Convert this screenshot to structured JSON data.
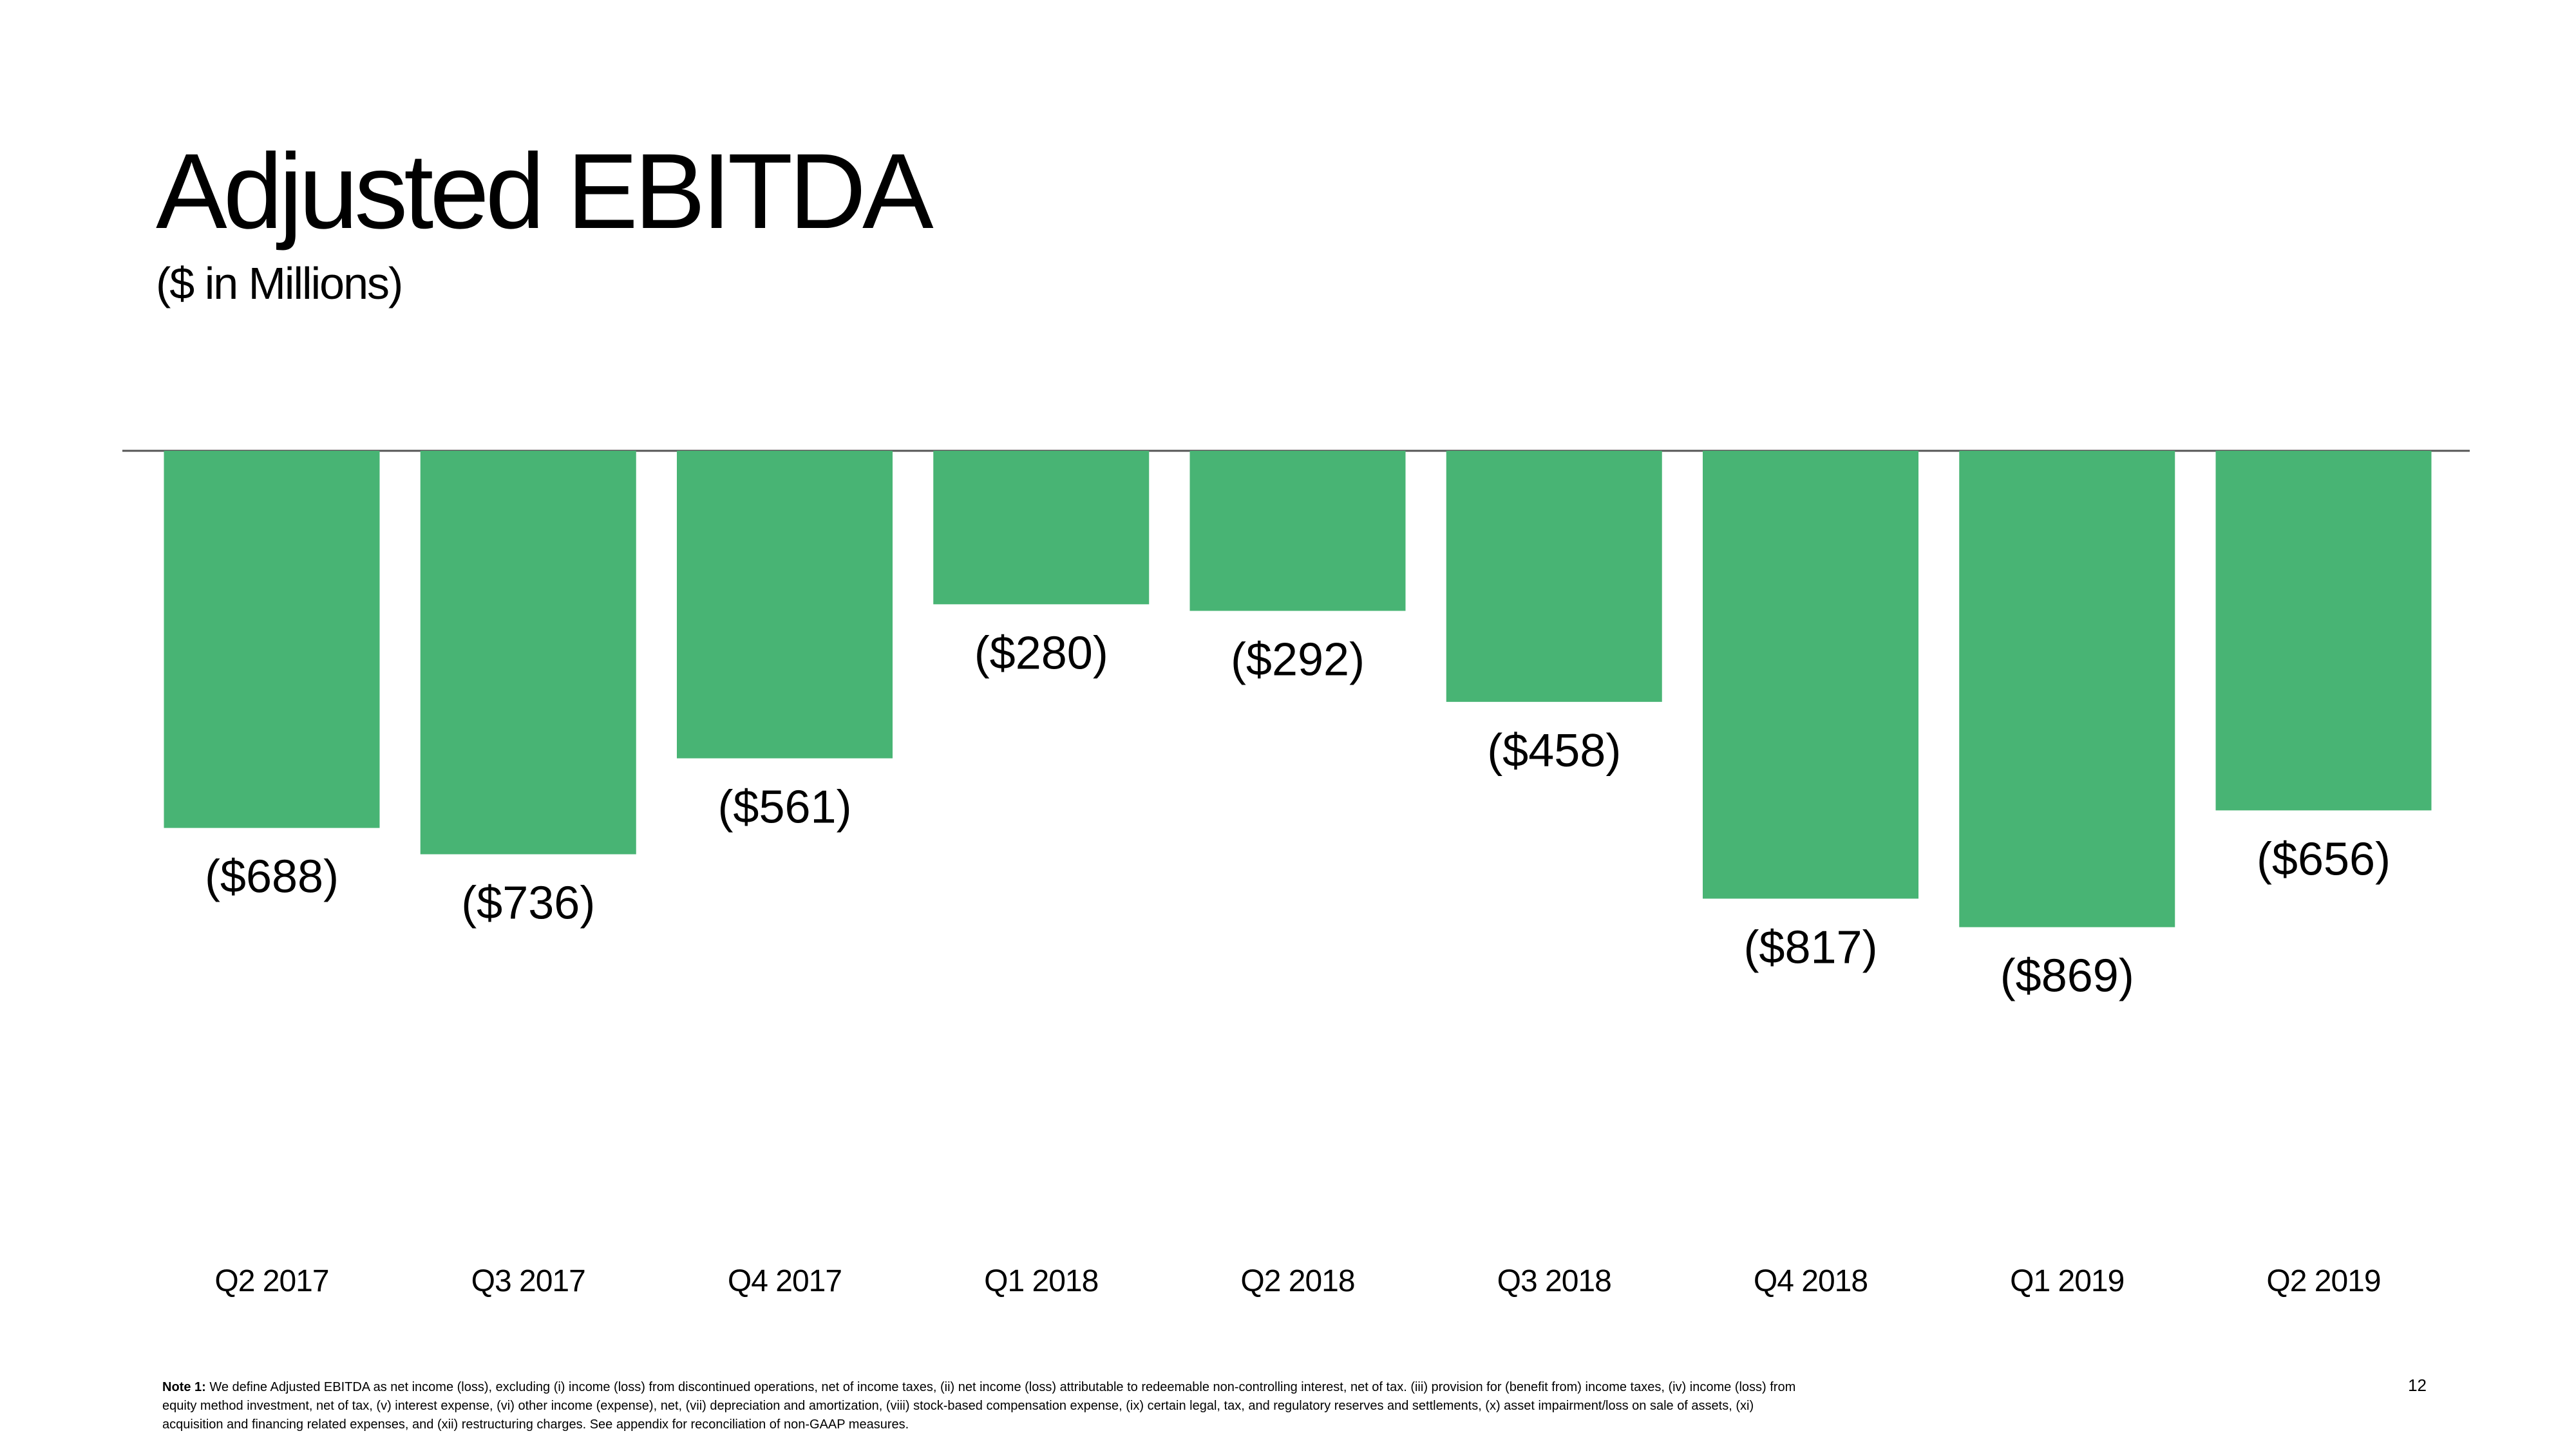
{
  "slide": {
    "title": "Adjusted EBITDA",
    "subtitle": "($ in Millions)",
    "note_label": "Note 1:",
    "note_text": "We define Adjusted EBITDA as net income (loss), excluding (i) income (loss) from discontinued operations, net of income taxes, (ii) net income (loss) attributable to redeemable non-controlling interest, net of tax. (iii) provision for (benefit from) income taxes, (iv) income (loss) from equity method investment, net of tax, (v) interest expense, (vi) other income (expense), net, (vii) depreciation and amortization, (viii) stock-based compensation expense, (ix) certain legal, tax, and regulatory reserves and settlements, (x) asset impairment/loss on sale of assets, (xi) acquisition and financing related expenses, and (xii) restructuring charges. See appendix for reconciliation of non-GAAP measures.",
    "page_number": "12"
  },
  "colors": {
    "bar": "#48B474",
    "baseline": "#555555",
    "text": "#000000",
    "background": "#FFFFFF"
  },
  "chart_data": {
    "type": "bar",
    "title": "Adjusted EBITDA",
    "subtitle": "($ in Millions)",
    "categories": [
      "Q2 2017",
      "Q3 2017",
      "Q4 2017",
      "Q1 2018",
      "Q2 2018",
      "Q3 2018",
      "Q4 2018",
      "Q1 2019",
      "Q2 2019"
    ],
    "values": [
      -688,
      -736,
      -561,
      -280,
      -292,
      -458,
      -817,
      -869,
      -656
    ],
    "data_labels": [
      "($688)",
      "($736)",
      "($561)",
      "($280)",
      "($292)",
      "($458)",
      "($817)",
      "($869)",
      "($656)"
    ],
    "ylim": [
      -900,
      0
    ],
    "grid": false,
    "legend": "none"
  }
}
